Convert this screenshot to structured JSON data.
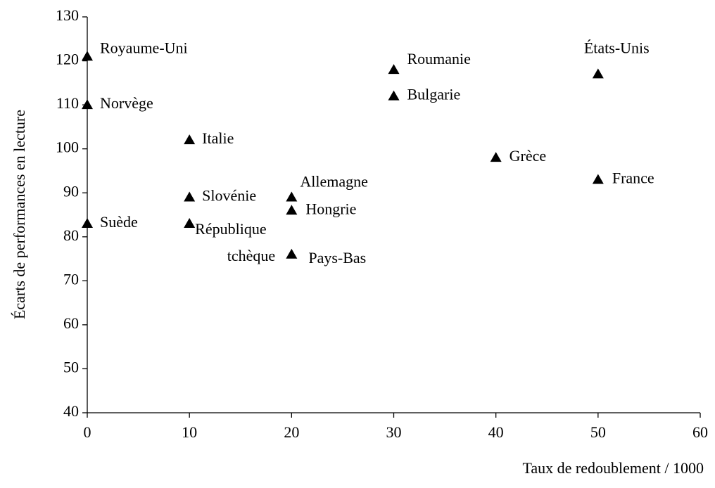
{
  "chart_data": {
    "type": "scatter",
    "xlabel": "Taux de redoublement / 1000",
    "ylabel": "Écarts de performances en lecture",
    "labels": [
      "Royaume-Uni",
      "Norvège",
      "Suède",
      "Italie",
      "Slovénie",
      "République tchèque",
      "Allemagne",
      "Hongrie",
      "Pays-Bas",
      "Roumanie",
      "Bulgarie",
      "Grèce",
      "États-Unis",
      "France"
    ],
    "x": [
      0,
      0,
      0,
      10,
      10,
      10,
      20,
      20,
      20,
      30,
      30,
      40,
      50,
      50
    ],
    "y": [
      121,
      110,
      83,
      102,
      89,
      83,
      89,
      86,
      76,
      118,
      112,
      98,
      117,
      93
    ],
    "color": "#000000",
    "xlim": [
      0,
      60
    ],
    "xticks": [
      0,
      10,
      20,
      30,
      40,
      50,
      60
    ],
    "ylim": [
      40,
      130
    ],
    "yticks": [
      40,
      50,
      60,
      70,
      80,
      90,
      100,
      110,
      120,
      130
    ],
    "grid": false
  }
}
